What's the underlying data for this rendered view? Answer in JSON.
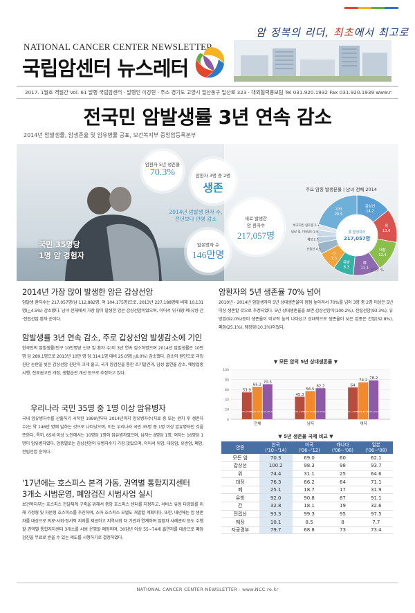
{
  "masthead": {
    "newsletter_en": "NATIONAL CANCER CENTER NEWSLETTER",
    "newsletter_ko": "국립암센터 뉴스레터",
    "slogan_pre": "암 정복의 리더, ",
    "slogan_mid": "최초",
    "slogan_post": "에서 최고로",
    "info_line": "2017. 1월호 격월간   Vol. 61   발행 국립암센터 · 발행인 이강현 · 주소 경기도 고양시 일산동구 일산로 323 · 대외협력홍보팀 Tel 031.920.1932 Fax 031.920.1939  www.ncc.re.kr"
  },
  "article": {
    "headline": "전국민 암발생률 3년 연속 감소",
    "subhead": "2014년 암발생률, 암생존율 및 암유병률 공표, 보건복지부 중앙암등록본부"
  },
  "hero": {
    "stat1_label": "암환자 5년 생존율",
    "stat1_value": "70.3%",
    "stat2_label": "암환자 3명 중 2명",
    "stat2_value": "생존",
    "stat3_note": "2014년 암발생 환자 수,\n전년보다 만명 감소",
    "stat4_label": "새로 발생한\n암 환자수",
    "stat4_value": "217,057명",
    "stat5_label": "암유병자 수",
    "stat5_value": "146만명",
    "photo_caption_1": "국민 35명당",
    "photo_caption_2": "1명 암 경험자",
    "donut_title": "주요 암종 발생분율 | 남녀 전체 2014",
    "donut_center_label": "총 발생자수",
    "donut_center_value": "217,057명",
    "donut_unit": "단위: %",
    "donut_segments": [
      {
        "name": "갑상선",
        "value": 14.2,
        "color": "#5c9fd4"
      },
      {
        "name": "위",
        "value": 13.6,
        "color": "#d9534f"
      },
      {
        "name": "대장",
        "value": 12.4,
        "color": "#8bbf4c"
      },
      {
        "name": "폐",
        "value": 11.1,
        "color": "#8e6bb0"
      },
      {
        "name": "유방",
        "value": 8.3,
        "color": "#3ab1a5"
      },
      {
        "name": "간",
        "value": 7.5,
        "color": "#f0a43a"
      },
      {
        "name": "전립선",
        "value": 4.5,
        "color": "#9ab4c9"
      },
      {
        "name": "췌장",
        "value": 2.7,
        "color": "#b7cfe0"
      },
      {
        "name": "담낭 및 기타담도",
        "value": 2.6,
        "color": "#c9d9e6"
      },
      {
        "name": "비호지킨 림프종",
        "value": 2.3,
        "color": "#dce6ee"
      },
      {
        "name": "기타",
        "value": 20.5,
        "color": "#6fb0d9"
      }
    ]
  },
  "left_column": {
    "sec1_title": "2014년 가장 많이 발생한 암은 갑상선암",
    "sec1_body": "암발생 환자수는 217,057명(남 112,882명, 여 104,175명)으로, 2013년 227,188명에 비해 10,131명(△4.5%) 감소했다. 남녀 전체에서 가장 많이 발생한 암은 갑상선암이었으며, 이어서 위·대장·폐·유방·간·전립선암 환자 순이다.",
    "sec2_title": "암발생률 3년 연속 감소, 주로 갑상선암 발생감소에 기인",
    "sec2_body": "한국인의 암발생률(인구 10만명당 신규 암 환자 수)이 3년 연속 감소하였으며 2014년 암발생률은 10만 명 당 289.1명으로 2013년 10만 명 당 314.1명 대비 25.0명(△8.0%) 감소했다. 감소의 원인으로 과잉진단 논란을 빚은 갑상선암 진단이 크게 줄고, 국가 암검진을 통한 조기발견과, 남성 흡연율 감소, 예방접종 시행, 진료권고안 개정, 생활습관 개선 등으로 추정하고 있다.",
    "sec3_title": "우리나라 국민 35명 중 1명 이상 암유병자",
    "sec3_body": "국내 암유병자수를 산출하기 시작한 1999년부터 2014년까지 암유병자수(치료 중 또는 완치 후 생존자 수)는 약 146만 명에 달하는 것으로 나타났으며, 이는 우리나라 국민 35명 중 1명 이상 암유병자인 것을 뜻한다. 특히, 65세 이상 노인에서는 10명당 1명이 암유병자였으며, 남자는 8명당 1명, 여자는 16명당 1명이 암유병자였다. 암종별로는 갑상선암의 유병자수가 가장 많았으며, 이어서 위암, 대장암, 유방암, 폐암, 전립선암 순이다.",
    "sec4_title_1": "'17년에는 호스피스 본격 가동, 권역별 통합지지센터",
    "sec4_title_2": "3개소 시범운영, 폐암검진 시범사업 실시",
    "sec4_body": "보건복지부는 호스피스 전달체계 구축을 위해서 중앙 호스피스 센터를 지정하고, 서비스 유형 다양화를 위해 가정형 및 자문형 호스피스를 추진하며, 소아 호스피스 모델도 개발할 계획이다. 또한, 내년에는 암 생존자를 대상으로 의료·사회·정서적 지지를 제공하고 지역사회 타 기관과 연계하여 암환자 사례관리 등도 수행할 권역별 통합지지센터 3개소를 시범 운영할 예정이며, 30갑년 이상 55~74세 흡연자를 대상으로 폐암검진을 무료로 받을 수 있는 제도를 시행하기로 결정하였다."
  },
  "right_column": {
    "sec5_title": "암환자의 5년 생존율 70% 넘어",
    "sec5_body": "2010년 - 2014년 암발생자의 5년 상대생존율이 점점 높아져서 70%를 넘어 3명 중 2명 이상은 5년 이상 생존할 것으로 추정되었다. 5년 상대생존율을 보면 갑상선암이(100.2%), 전립선암(93.3%), 유방암(92.0%)등이 생존율이 비교적 높게 나타났고 상대적으로 생존율이 낮은 암종은 간암(32.8%), 폐암(25.1%), 췌장암(10.1%)이었다."
  },
  "chart_data": {
    "type": "bar",
    "title": "▼ 모든 암의 5년 상대생존율 ▼",
    "categories": [
      "전체",
      "남자",
      "여자"
    ],
    "series": [
      {
        "name": "2001-2005년",
        "values": [
          53.9,
          45.3,
          64.0
        ],
        "color": "#b74b3c"
      },
      {
        "name": "2006-2010년",
        "values": [
          65.2,
          56.5,
          74.2
        ],
        "color": "#f08a2c"
      },
      {
        "name": "2010-2014년",
        "values": [
          70.3,
          62.2,
          78.2
        ],
        "color": "#8e5aa8"
      }
    ],
    "ylim": [
      0,
      100
    ],
    "yticks": [
      0,
      20,
      40,
      60,
      80,
      100
    ],
    "bar_labels": [
      "2001-2005년",
      "2006-2010년",
      "2010-2014년"
    ]
  },
  "table": {
    "title": "▼ 5년 생존율 국제 비교 ▼",
    "headers": [
      "암종",
      "한국\n('10~'14)",
      "미국\n('06~'12)",
      "캐나다\n('06~'08)",
      "일본\n('06~'08)"
    ],
    "rows": [
      [
        "모든 암",
        "70.3",
        "69.0",
        "60",
        "62.1"
      ],
      [
        "갑상선",
        "100.2",
        "98.3",
        "98",
        "93.7"
      ],
      [
        "위",
        "74.4",
        "31.1",
        "25",
        "64.6"
      ],
      [
        "대장",
        "76.3",
        "66.2",
        "64",
        "71.1"
      ],
      [
        "폐",
        "25.1",
        "18.7",
        "17",
        "31.9"
      ],
      [
        "유방",
        "92.0",
        "90.8",
        "87",
        "91.1"
      ],
      [
        "간",
        "32.8",
        "18.1",
        "19",
        "32.6"
      ],
      [
        "전립선",
        "93.3",
        "99.3",
        "95",
        "97.5"
      ],
      [
        "췌장",
        "10.1",
        "8.5",
        "8",
        "7.7"
      ],
      [
        "자궁경부",
        "79.7",
        "68.8",
        "73",
        "73.4"
      ]
    ]
  },
  "footer": {
    "text": "NATIONAL CANCER CENTER NEWSLETTER · www.NCC.re.kr"
  }
}
